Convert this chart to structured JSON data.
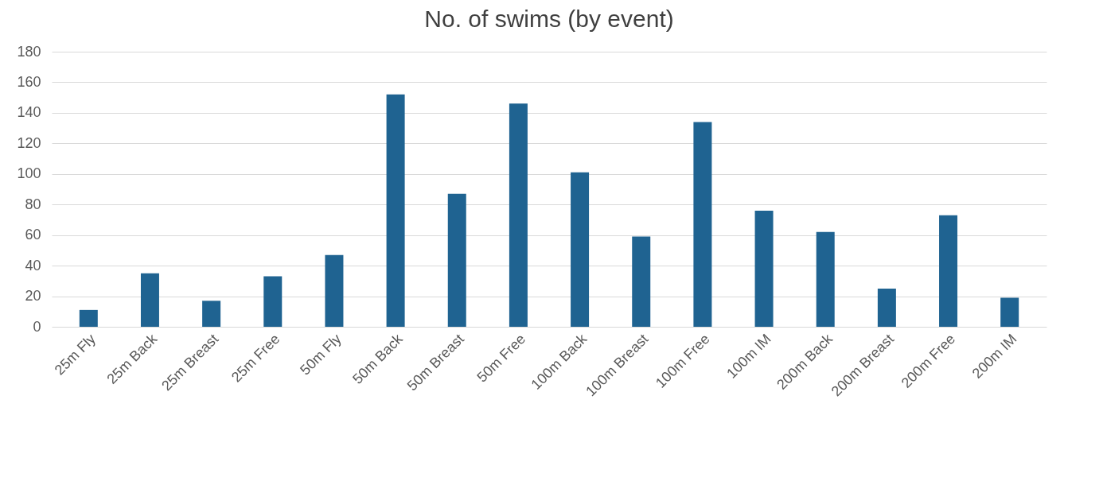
{
  "chart_data": {
    "type": "bar",
    "title": "No. of swims (by event)",
    "categories": [
      "25m Fly",
      "25m Back",
      "25m Breast",
      "25m Free",
      "50m Fly",
      "50m Back",
      "50m Breast",
      "50m Free",
      "100m Back",
      "100m Breast",
      "100m Free",
      "100m IM",
      "200m Back",
      "200m Breast",
      "200m Free",
      "200m IM"
    ],
    "values": [
      11,
      35,
      17,
      33,
      47,
      152,
      87,
      146,
      101,
      59,
      134,
      76,
      62,
      25,
      73,
      19
    ],
    "color": "#1f6391",
    "ylim": [
      0,
      180
    ],
    "yticks": [
      0,
      20,
      40,
      60,
      80,
      100,
      120,
      140,
      160,
      180
    ],
    "grid": "y"
  }
}
